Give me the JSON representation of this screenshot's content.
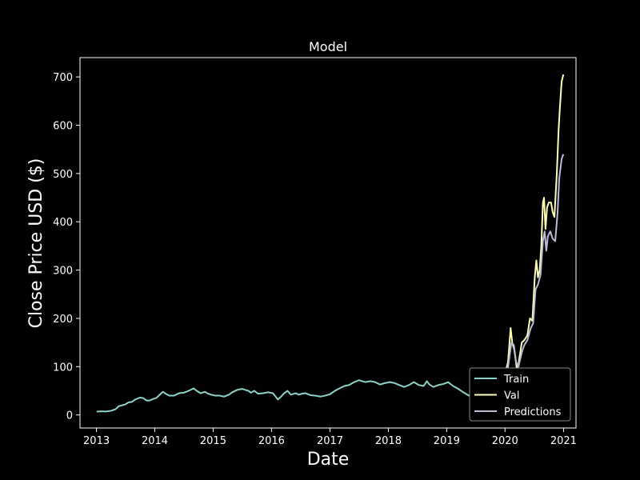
{
  "chart_data": {
    "type": "line",
    "title": "Model",
    "xlabel": "Date",
    "ylabel": "Close Price USD ($)",
    "xlim": [
      "2012-09-20",
      "2021-03-20"
    ],
    "ylim": [
      -27,
      740
    ],
    "x_ticks": [
      "2013",
      "2014",
      "2015",
      "2016",
      "2017",
      "2018",
      "2019",
      "2020",
      "2021"
    ],
    "y_ticks": [
      0,
      100,
      200,
      300,
      400,
      500,
      600,
      700
    ],
    "grid": false,
    "legend_position": "lower right",
    "background": "#000000",
    "axis_color": "#ffffff",
    "series": [
      {
        "name": "Train",
        "color": "#8dd3c7",
        "points": [
          [
            "2013-01-02",
            7
          ],
          [
            "2013-02-01",
            7.5
          ],
          [
            "2013-03-01",
            7.2
          ],
          [
            "2013-04-01",
            8.5
          ],
          [
            "2013-05-01",
            12
          ],
          [
            "2013-05-20",
            18
          ],
          [
            "2013-06-10",
            20
          ],
          [
            "2013-07-01",
            22
          ],
          [
            "2013-07-20",
            26
          ],
          [
            "2013-08-10",
            27
          ],
          [
            "2013-09-01",
            32
          ],
          [
            "2013-10-01",
            36
          ],
          [
            "2013-10-20",
            35
          ],
          [
            "2013-11-10",
            30
          ],
          [
            "2013-12-01",
            30
          ],
          [
            "2013-12-20",
            33
          ],
          [
            "2014-01-10",
            35
          ],
          [
            "2014-02-01",
            42
          ],
          [
            "2014-02-20",
            48
          ],
          [
            "2014-03-10",
            44
          ],
          [
            "2014-04-01",
            40
          ],
          [
            "2014-05-01",
            40
          ],
          [
            "2014-06-01",
            45
          ],
          [
            "2014-07-01",
            46
          ],
          [
            "2014-08-01",
            50
          ],
          [
            "2014-09-01",
            55
          ],
          [
            "2014-09-20",
            50
          ],
          [
            "2014-10-15",
            45
          ],
          [
            "2014-11-10",
            48
          ],
          [
            "2014-12-01",
            44
          ],
          [
            "2014-12-20",
            42
          ],
          [
            "2015-01-15",
            40
          ],
          [
            "2015-02-10",
            40
          ],
          [
            "2015-03-10",
            38
          ],
          [
            "2015-04-10",
            42
          ],
          [
            "2015-05-01",
            47
          ],
          [
            "2015-06-01",
            52
          ],
          [
            "2015-07-01",
            54
          ],
          [
            "2015-07-20",
            52
          ],
          [
            "2015-08-10",
            50
          ],
          [
            "2015-08-25",
            46
          ],
          [
            "2015-09-15",
            50
          ],
          [
            "2015-10-10",
            44
          ],
          [
            "2015-11-10",
            45
          ],
          [
            "2015-12-10",
            47
          ],
          [
            "2016-01-10",
            45
          ],
          [
            "2016-02-10",
            32
          ],
          [
            "2016-03-01",
            38
          ],
          [
            "2016-03-20",
            45
          ],
          [
            "2016-04-10",
            50
          ],
          [
            "2016-05-01",
            42
          ],
          [
            "2016-06-01",
            45
          ],
          [
            "2016-06-20",
            42
          ],
          [
            "2016-07-10",
            44
          ],
          [
            "2016-08-01",
            45
          ],
          [
            "2016-09-01",
            41
          ],
          [
            "2016-10-01",
            40
          ],
          [
            "2016-11-01",
            38
          ],
          [
            "2016-12-01",
            40
          ],
          [
            "2017-01-01",
            43
          ],
          [
            "2017-02-01",
            50
          ],
          [
            "2017-03-01",
            55
          ],
          [
            "2017-04-01",
            60
          ],
          [
            "2017-05-01",
            62
          ],
          [
            "2017-06-01",
            68
          ],
          [
            "2017-07-01",
            72
          ],
          [
            "2017-07-20",
            70
          ],
          [
            "2017-08-10",
            68
          ],
          [
            "2017-09-10",
            70
          ],
          [
            "2017-10-10",
            68
          ],
          [
            "2017-11-10",
            63
          ],
          [
            "2017-12-10",
            66
          ],
          [
            "2018-01-10",
            68
          ],
          [
            "2018-02-10",
            66
          ],
          [
            "2018-03-10",
            62
          ],
          [
            "2018-04-10",
            58
          ],
          [
            "2018-05-10",
            62
          ],
          [
            "2018-06-10",
            68
          ],
          [
            "2018-07-10",
            62
          ],
          [
            "2018-08-10",
            60
          ],
          [
            "2018-08-30",
            70
          ],
          [
            "2018-09-15",
            63
          ],
          [
            "2018-10-10",
            58
          ],
          [
            "2018-11-10",
            62
          ],
          [
            "2018-12-10",
            64
          ],
          [
            "2019-01-10",
            68
          ],
          [
            "2019-02-10",
            60
          ],
          [
            "2019-03-10",
            55
          ],
          [
            "2019-04-10",
            48
          ],
          [
            "2019-05-10",
            42
          ],
          [
            "2019-06-01",
            38
          ]
        ]
      },
      {
        "name": "Val",
        "color": "#ffffb3",
        "points": [
          [
            "2019-06-01",
            38
          ],
          [
            "2019-07-01",
            45
          ],
          [
            "2019-08-01",
            43
          ],
          [
            "2019-09-01",
            46
          ],
          [
            "2019-10-01",
            52
          ],
          [
            "2019-11-01",
            58
          ],
          [
            "2019-12-01",
            65
          ],
          [
            "2020-01-01",
            85
          ],
          [
            "2020-01-20",
            110
          ],
          [
            "2020-02-05",
            180
          ],
          [
            "2020-02-15",
            150
          ],
          [
            "2020-02-28",
            135
          ],
          [
            "2020-03-15",
            95
          ],
          [
            "2020-03-25",
            105
          ],
          [
            "2020-04-15",
            150
          ],
          [
            "2020-05-01",
            155
          ],
          [
            "2020-05-20",
            165
          ],
          [
            "2020-06-05",
            200
          ],
          [
            "2020-06-20",
            195
          ],
          [
            "2020-07-05",
            285
          ],
          [
            "2020-07-15",
            320
          ],
          [
            "2020-07-25",
            285
          ],
          [
            "2020-08-05",
            300
          ],
          [
            "2020-08-15",
            350
          ],
          [
            "2020-08-25",
            440
          ],
          [
            "2020-09-01",
            450
          ],
          [
            "2020-09-10",
            385
          ],
          [
            "2020-09-20",
            430
          ],
          [
            "2020-10-01",
            440
          ],
          [
            "2020-10-15",
            440
          ],
          [
            "2020-10-25",
            420
          ],
          [
            "2020-11-05",
            410
          ],
          [
            "2020-11-20",
            500
          ],
          [
            "2020-12-01",
            590
          ],
          [
            "2020-12-10",
            640
          ],
          [
            "2020-12-20",
            690
          ],
          [
            "2020-12-31",
            705
          ]
        ]
      },
      {
        "name": "Predictions",
        "color": "#bebada",
        "points": [
          [
            "2019-06-01",
            40
          ],
          [
            "2019-07-01",
            43
          ],
          [
            "2019-08-01",
            44
          ],
          [
            "2019-09-01",
            44
          ],
          [
            "2019-10-01",
            48
          ],
          [
            "2019-11-01",
            54
          ],
          [
            "2019-12-01",
            60
          ],
          [
            "2020-01-01",
            75
          ],
          [
            "2020-01-20",
            100
          ],
          [
            "2020-02-10",
            150
          ],
          [
            "2020-02-25",
            145
          ],
          [
            "2020-03-10",
            110
          ],
          [
            "2020-03-25",
            100
          ],
          [
            "2020-04-15",
            130
          ],
          [
            "2020-05-01",
            145
          ],
          [
            "2020-05-20",
            155
          ],
          [
            "2020-06-10",
            180
          ],
          [
            "2020-06-25",
            190
          ],
          [
            "2020-07-10",
            260
          ],
          [
            "2020-07-25",
            270
          ],
          [
            "2020-08-10",
            290
          ],
          [
            "2020-08-25",
            360
          ],
          [
            "2020-09-05",
            380
          ],
          [
            "2020-09-15",
            340
          ],
          [
            "2020-09-25",
            370
          ],
          [
            "2020-10-10",
            380
          ],
          [
            "2020-10-25",
            365
          ],
          [
            "2020-11-10",
            360
          ],
          [
            "2020-11-25",
            420
          ],
          [
            "2020-12-05",
            490
          ],
          [
            "2020-12-20",
            530
          ],
          [
            "2020-12-31",
            540
          ]
        ]
      }
    ]
  }
}
